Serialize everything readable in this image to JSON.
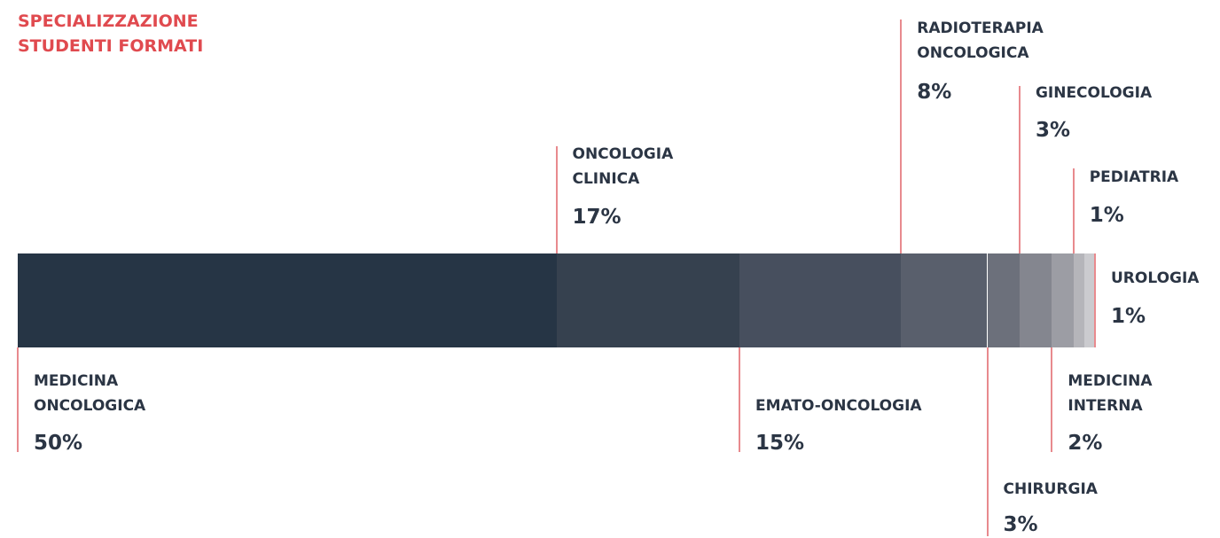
{
  "chart_data": {
    "type": "stacked-bar",
    "title": "SPECIALIZZAZIONE\nSTUDENTI FORMATI",
    "categories": [
      "MEDICINA\nONCOLOGICA",
      "ONCOLOGIA\nCLINICA",
      "EMATO-ONCOLOGIA",
      "RADIOTERAPIA\nONCOLOGICA",
      "CHIRURGIA",
      "GINECOLOGIA",
      "MEDICINA\nINTERNA",
      "PEDIATRIA",
      "UROLOGIA"
    ],
    "values": [
      50,
      17,
      15,
      8,
      3,
      3,
      2,
      1,
      1
    ],
    "value_labels": [
      "50%",
      "17%",
      "15%",
      "8%",
      "3%",
      "3%",
      "2%",
      "1%",
      "1%"
    ],
    "colors": [
      "#263545",
      "#36414f",
      "#474f5e",
      "#595f6c",
      "#6c707b",
      "#84868f",
      "#9c9da4",
      "#b5b5ba",
      "#cbcbcf"
    ],
    "xlim": [
      0,
      100
    ]
  }
}
